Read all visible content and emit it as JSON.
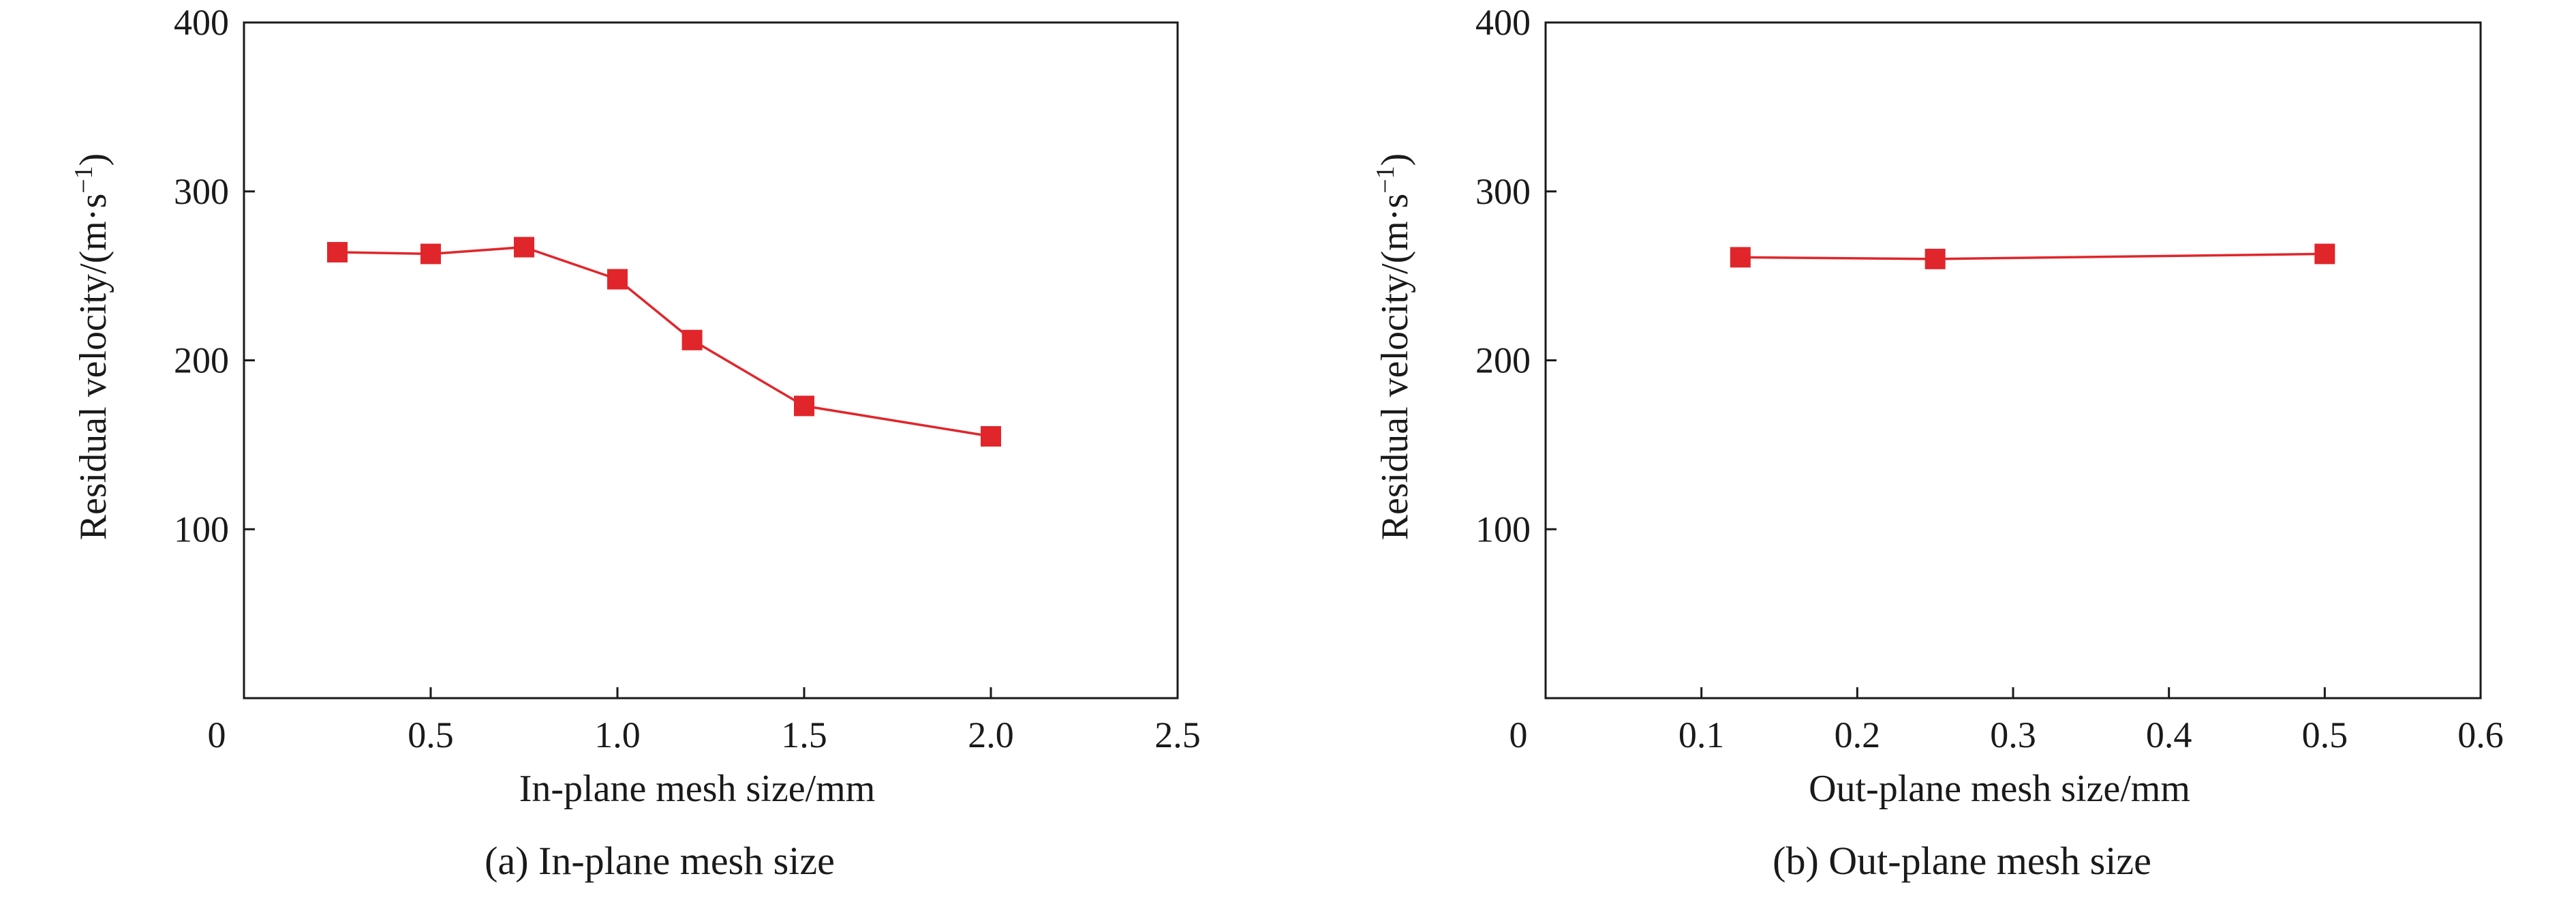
{
  "colors": {
    "series": "#e0262b",
    "axis": "#1a1a1a",
    "background": "#ffffff"
  },
  "chart_data": [
    {
      "type": "line",
      "caption": "(a) In-plane mesh size",
      "xlabel": "In-plane mesh size/mm",
      "ylabel_main": "Residual velocity/(m·s",
      "ylabel_sup": "−1",
      "ylabel_end": ")",
      "xlim": [
        0,
        2.5
      ],
      "ylim": [
        0,
        400
      ],
      "xticks": [
        0,
        0.5,
        1.0,
        1.5,
        2.0,
        2.5
      ],
      "xtick_labels": [
        "0",
        "0.5",
        "1.0",
        "1.5",
        "2.0",
        "2.5"
      ],
      "yticks": [
        100,
        200,
        300,
        400
      ],
      "ytick_labels": [
        "100",
        "200",
        "300",
        "400"
      ],
      "grid": false,
      "marker": "square",
      "series": [
        {
          "x": [
            0.25,
            0.5,
            0.75,
            1.0,
            1.2,
            1.5,
            2.0
          ],
          "y": [
            264,
            263,
            267,
            248,
            212,
            173,
            155
          ]
        }
      ]
    },
    {
      "type": "line",
      "caption": "(b) Out-plane mesh size",
      "xlabel": "Out-plane mesh size/mm",
      "ylabel_main": "Residual velocity/(m·s",
      "ylabel_sup": "−1",
      "ylabel_end": ")",
      "xlim": [
        0,
        0.6
      ],
      "ylim": [
        0,
        400
      ],
      "xticks": [
        0,
        0.1,
        0.2,
        0.3,
        0.4,
        0.5,
        0.6
      ],
      "xtick_labels": [
        "0",
        "0.1",
        "0.2",
        "0.3",
        "0.4",
        "0.5",
        "0.6"
      ],
      "yticks": [
        100,
        200,
        300,
        400
      ],
      "ytick_labels": [
        "100",
        "200",
        "300",
        "400"
      ],
      "grid": false,
      "marker": "square",
      "series": [
        {
          "x": [
            0.125,
            0.25,
            0.5
          ],
          "y": [
            261,
            260,
            263
          ]
        }
      ]
    }
  ]
}
